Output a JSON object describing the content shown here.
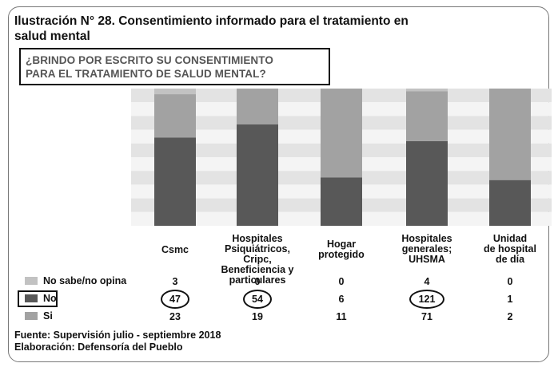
{
  "title": "Ilustración N° 28. Consentimiento informado para el tratamiento en salud mental",
  "question_line1": "¿BRINDO POR ESCRITO SU CONSENTIMIENTO",
  "question_line2": "PARA EL TRATAMIENTO DE SALUD MENTAL?",
  "colors": {
    "no_sabe": "#c2c2c2",
    "no": "#585858",
    "si": "#a2a2a2",
    "stripe_light": "#f4f4f4",
    "stripe_dark": "#e3e3e3"
  },
  "chart_data": {
    "type": "bar",
    "stacked": "100%",
    "categories": [
      [
        "Csmc"
      ],
      [
        "Hospitales",
        "Psiquiátricos, Cripc,",
        "Beneficiencia y",
        "particulares"
      ],
      [
        "Hogar",
        "protegido"
      ],
      [
        "Hospitales",
        "generales;",
        "UHSMA"
      ],
      [
        "Unidad",
        "de hospital",
        "de día"
      ]
    ],
    "series": [
      {
        "name": "No sabe/no opina",
        "values": [
          3,
          0,
          0,
          4,
          0
        ]
      },
      {
        "name": "No",
        "values": [
          47,
          54,
          6,
          121,
          1
        ]
      },
      {
        "name": "Si",
        "values": [
          23,
          19,
          11,
          71,
          2
        ]
      }
    ],
    "highlighted_series": "No",
    "highlighted_values": [
      47,
      54,
      121
    ]
  },
  "legend": {
    "no_sabe": "No sabe/no opina",
    "no": "No",
    "si": "Si"
  },
  "footer": {
    "fuente": "Fuente: Supervisión julio - septiembre 2018",
    "elaboracion": "Elaboración: Defensoría del Pueblo"
  }
}
